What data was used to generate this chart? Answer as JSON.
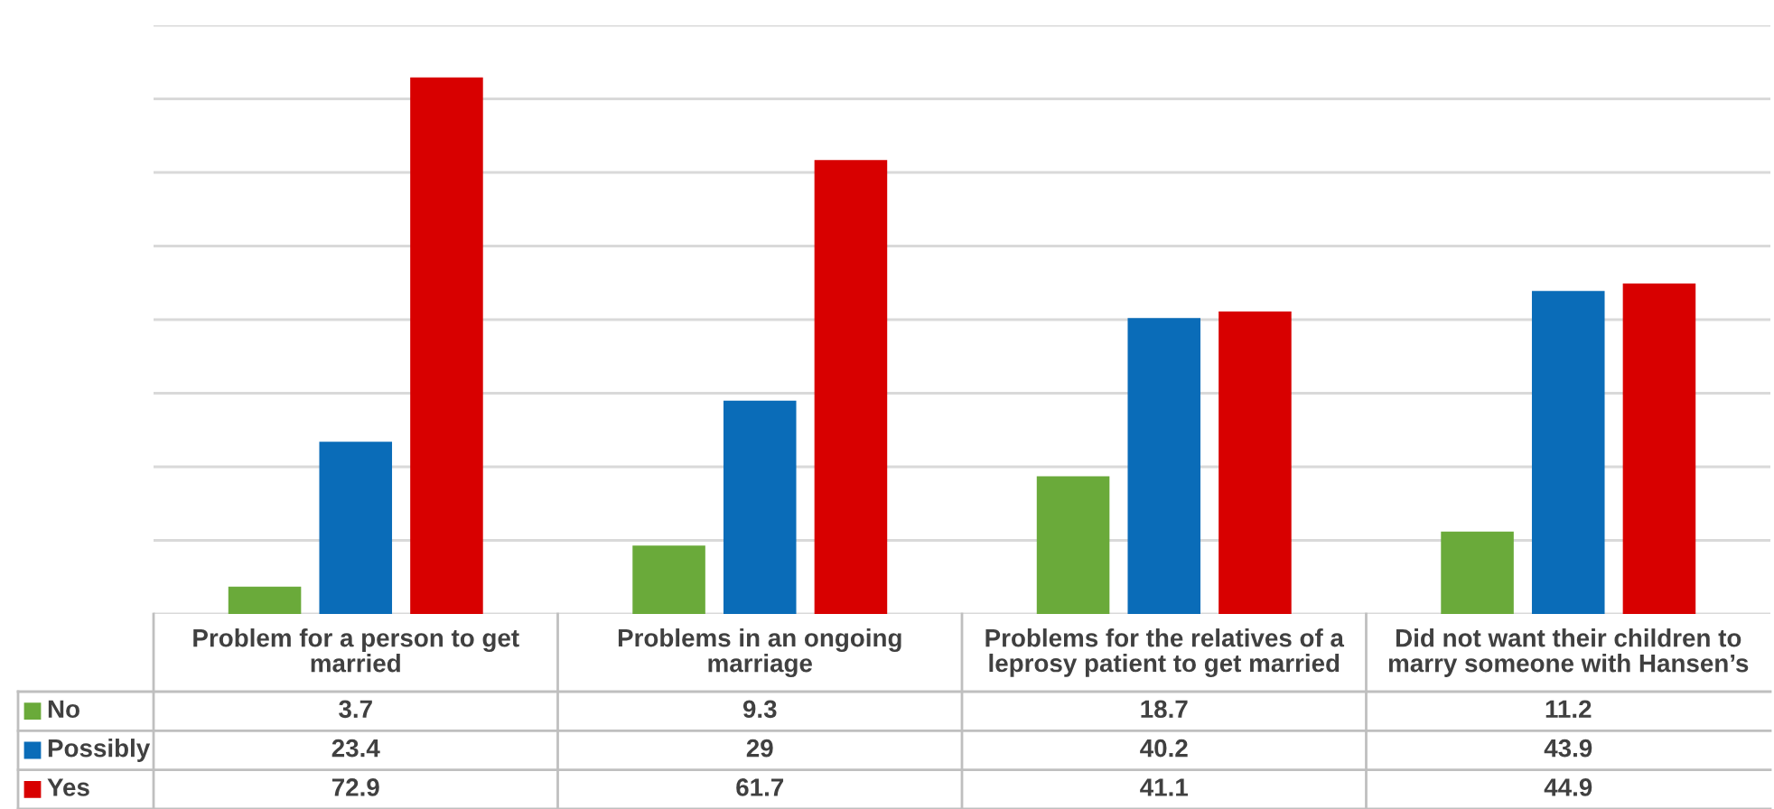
{
  "chart_data": {
    "type": "bar",
    "categories": [
      "Problem for a person to get married",
      "Problems in an ongoing marriage",
      "Problems for the relatives of a leprosy patient to get married",
      "Did not want their children to marry someone with Hansen’s"
    ],
    "series": [
      {
        "name": "No",
        "color": "#6aaa3a",
        "values": [
          3.7,
          9.3,
          18.7,
          11.2
        ]
      },
      {
        "name": "Possibly",
        "color": "#0a6cb8",
        "values": [
          23.4,
          29,
          40.2,
          43.9
        ]
      },
      {
        "name": "Yes",
        "color": "#d80000",
        "values": [
          72.9,
          61.7,
          41.1,
          44.9
        ]
      }
    ],
    "ylim": [
      0,
      80
    ],
    "yticks": [
      {
        "value": 0,
        "label": null
      },
      {
        "value": 10,
        "label": null
      },
      {
        "value": 20,
        "label": null
      },
      {
        "value": 30,
        "label": null
      },
      {
        "value": 40,
        "label": null
      },
      {
        "value": 50,
        "label": null
      },
      {
        "value": 60,
        "label": null
      },
      {
        "value": 70,
        "label": null
      },
      {
        "value": 80,
        "label": null
      }
    ],
    "grid": "y",
    "legend": "bottom left",
    "data_labels": true,
    "tick_labels": "x"
  }
}
